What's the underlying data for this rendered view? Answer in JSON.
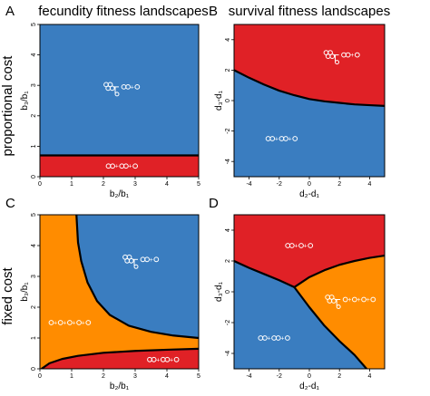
{
  "column_titles": [
    "fecundity fitness landscapes",
    "survival fitness landscapes"
  ],
  "row_titles": [
    "proportional cost",
    "fixed cost"
  ],
  "colors": {
    "blue": "#3A7DC0",
    "red": "#E02126",
    "orange": "#FF8C00"
  },
  "chart_data": [
    {
      "panel": "A",
      "type": "area",
      "xlabel": "b₂/b₁",
      "ylabel": "b₃/b₁",
      "xlim": [
        0,
        5
      ],
      "ylim": [
        0,
        5
      ],
      "xticks": [
        "0",
        "1",
        "2",
        "3",
        "4",
        "5"
      ],
      "yticks": [
        "0",
        "1",
        "2",
        "3",
        "4",
        "5"
      ],
      "grid": false,
      "regions": [
        {
          "color": "blue",
          "glyph": "3-cluster, 2-mer + 1",
          "at": [
            2.6,
            2.95
          ]
        },
        {
          "color": "red",
          "glyph": "2-mer + 2 + 1",
          "at": [
            2.6,
            0.35
          ]
        }
      ],
      "boundaries": [
        {
          "points": [
            [
              0,
              0.7
            ],
            [
              5,
              0.7
            ]
          ]
        }
      ]
    },
    {
      "panel": "B",
      "type": "area",
      "xlabel": "d₂-d₁",
      "ylabel": "d₃-d₁",
      "xlim": [
        -5,
        5
      ],
      "ylim": [
        -5,
        5
      ],
      "xticks": [
        "-4",
        "-2",
        "0",
        "2",
        "4"
      ],
      "yticks": [
        "-4",
        "-2",
        "0",
        "2",
        "4"
      ],
      "grid": false,
      "regions": [
        {
          "color": "red",
          "glyph": "3-cluster, 2 + 1",
          "at": [
            2.2,
            3.0
          ]
        },
        {
          "color": "blue",
          "glyph": "2-mer + 2 + 1",
          "at": [
            -1.8,
            -2.5
          ]
        }
      ],
      "boundaries": [
        {
          "points": [
            [
              -5,
              2.0
            ],
            [
              -4,
              1.5
            ],
            [
              -3,
              1.05
            ],
            [
              -2,
              0.65
            ],
            [
              -1,
              0.35
            ],
            [
              0,
              0.1
            ],
            [
              1,
              -0.05
            ],
            [
              2,
              -0.15
            ],
            [
              3,
              -0.25
            ],
            [
              4,
              -0.3
            ],
            [
              5,
              -0.35
            ]
          ]
        }
      ]
    },
    {
      "panel": "C",
      "type": "area",
      "xlabel": "b₂/b₁",
      "ylabel": "b₃/b₁",
      "xlim": [
        0,
        5
      ],
      "ylim": [
        0,
        5
      ],
      "xticks": [
        "0",
        "1",
        "2",
        "3",
        "4",
        "5"
      ],
      "yticks": [
        "0",
        "1",
        "2",
        "3",
        "4",
        "5"
      ],
      "grid": false,
      "regions": [
        {
          "color": "orange",
          "glyph": "1 + 1 + 1 + 1 + 1",
          "at": [
            0.8,
            1.5
          ]
        },
        {
          "color": "blue",
          "glyph": "3-cluster, 2-mer + 1",
          "at": [
            3.2,
            3.55
          ]
        },
        {
          "color": "red",
          "glyph": "2-mer + 2 + 1",
          "at": [
            3.9,
            0.3
          ]
        }
      ],
      "boundaries": [
        {
          "points": [
            [
              1.15,
              5
            ],
            [
              1.2,
              4.1
            ],
            [
              1.3,
              3.5
            ],
            [
              1.5,
              2.8
            ],
            [
              1.8,
              2.2
            ],
            [
              2.2,
              1.75
            ],
            [
              2.8,
              1.4
            ],
            [
              3.5,
              1.2
            ],
            [
              4.2,
              1.08
            ],
            [
              5,
              1.0
            ]
          ]
        },
        {
          "points": [
            [
              0.05,
              0
            ],
            [
              0.3,
              0.18
            ],
            [
              0.7,
              0.32
            ],
            [
              1.2,
              0.42
            ],
            [
              2,
              0.52
            ],
            [
              3,
              0.58
            ],
            [
              4,
              0.62
            ],
            [
              5,
              0.65
            ]
          ]
        }
      ]
    },
    {
      "panel": "D",
      "type": "area",
      "xlabel": "d₂-d₁",
      "ylabel": "d₃-d₁",
      "xlim": [
        -5,
        5
      ],
      "ylim": [
        -5,
        5
      ],
      "xticks": [
        "-4",
        "-2",
        "0",
        "2",
        "4"
      ],
      "yticks": [
        "-4",
        "-2",
        "0",
        "2",
        "4"
      ],
      "grid": false,
      "regions": [
        {
          "color": "red",
          "glyph": "2 + 1 + 1",
          "at": [
            -0.5,
            3.0
          ]
        },
        {
          "color": "orange",
          "glyph": "3-cluster, 1 + 1 + 1 + 1",
          "at": [
            2.3,
            -0.5
          ]
        },
        {
          "color": "blue",
          "glyph": "2-mer + 2 + 1",
          "at": [
            -2.3,
            -3.0
          ]
        }
      ],
      "boundaries": [
        {
          "points": [
            [
              -5,
              2.0
            ],
            [
              -4,
              1.55
            ],
            [
              -3,
              1.15
            ],
            [
              -2,
              0.75
            ],
            [
              -1,
              0.3
            ]
          ]
        },
        {
          "points": [
            [
              -1,
              0.3
            ],
            [
              0,
              0.95
            ],
            [
              1,
              1.4
            ],
            [
              2,
              1.75
            ],
            [
              3,
              2.0
            ],
            [
              4,
              2.2
            ],
            [
              5,
              2.35
            ]
          ]
        },
        {
          "points": [
            [
              -1,
              0.3
            ],
            [
              0,
              -1.0
            ],
            [
              1,
              -2.2
            ],
            [
              2,
              -3.2
            ],
            [
              3,
              -4.1
            ],
            [
              3.8,
              -5
            ]
          ]
        }
      ]
    }
  ]
}
